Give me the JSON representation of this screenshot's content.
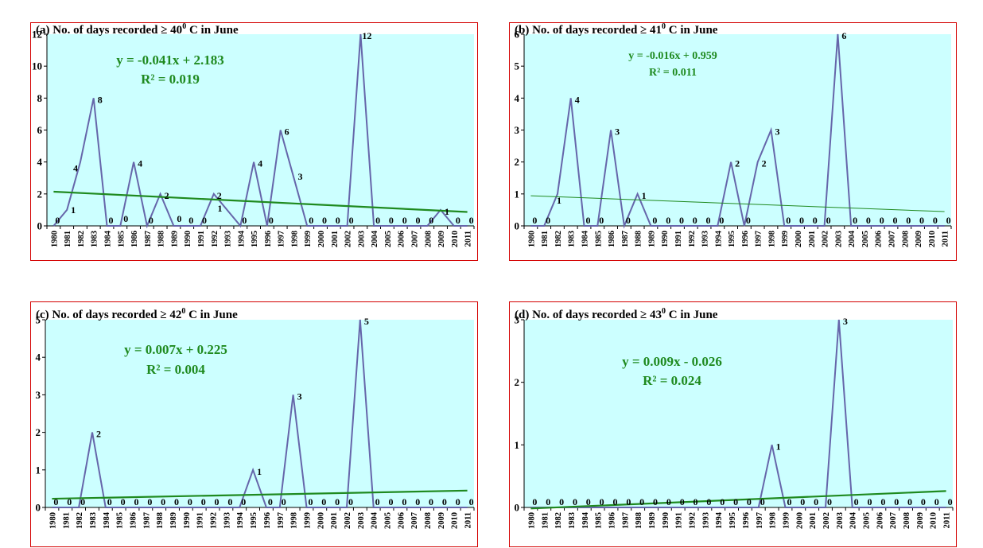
{
  "chart_data": [
    {
      "id": "a",
      "type": "line",
      "title": "(a) No. of days recorded ≥ 40⁰ C in June",
      "title_parts": [
        "(a) No. of days recorded ≥ 40",
        "0",
        " C in June"
      ],
      "x": [
        "1980",
        "1981",
        "1982",
        "1983",
        "1984",
        "1985",
        "1986",
        "1987",
        "1988",
        "1989",
        "1990",
        "1991",
        "1992",
        "1993",
        "1994",
        "1995",
        "1996",
        "1997",
        "1998",
        "1999",
        "2000",
        "2001",
        "2002",
        "2003",
        "2004",
        "2005",
        "2006",
        "2007",
        "2008",
        "2009",
        "2010",
        "2011"
      ],
      "values": [
        0,
        1,
        4,
        8,
        0,
        0,
        4,
        0,
        2,
        0,
        0,
        0,
        2,
        1,
        0,
        4,
        0,
        6,
        3,
        0,
        0,
        0,
        0,
        12,
        0,
        0,
        0,
        0,
        0,
        1,
        0,
        0
      ],
      "ylim": [
        0,
        12
      ],
      "yticks": [
        0,
        2,
        4,
        6,
        8,
        10,
        12
      ],
      "trendline": {
        "equation": "y = -0.041x + 2.183",
        "r2": "R² = 0.019",
        "slope": -0.041,
        "intercept": 2.183
      },
      "colors": {
        "plot_bg": "#ccffff",
        "line": "#6666aa",
        "trend": "#1f8a1f"
      }
    },
    {
      "id": "b",
      "type": "line",
      "title": "(b) No. of days recorded ≥ 41⁰ C in June",
      "title_parts": [
        "(b) No. of days recorded ≥ 41",
        "0",
        " C in June"
      ],
      "x": [
        "1980",
        "1981",
        "1982",
        "1983",
        "1984",
        "1985",
        "1986",
        "1987",
        "1988",
        "1989",
        "1990",
        "1991",
        "1992",
        "1993",
        "1994",
        "1995",
        "1996",
        "1997",
        "1998",
        "1999",
        "2000",
        "2001",
        "2002",
        "2003",
        "2004",
        "2005",
        "2006",
        "2007",
        "2008",
        "2009",
        "2010",
        "2011"
      ],
      "values": [
        0,
        0,
        1,
        4,
        0,
        0,
        3,
        0,
        1,
        0,
        0,
        0,
        0,
        0,
        0,
        2,
        0,
        2,
        3,
        0,
        0,
        0,
        0,
        6,
        0,
        0,
        0,
        0,
        0,
        0,
        0,
        0
      ],
      "ylim": [
        0,
        6
      ],
      "yticks": [
        0,
        1,
        2,
        3,
        4,
        5,
        6
      ],
      "trendline": {
        "equation": "y = -0.016x + 0.959",
        "r2": "R² = 0.011",
        "slope": -0.016,
        "intercept": 0.959
      },
      "colors": {
        "plot_bg": "#ccffff",
        "line": "#6666aa",
        "trend": "#1f8a1f"
      }
    },
    {
      "id": "c",
      "type": "line",
      "title": "(c) No. of days recorded ≥ 42⁰ C in June",
      "title_parts": [
        "(c) No. of days recorded ≥ 42",
        "0",
        " C in June"
      ],
      "x": [
        "1980",
        "1981",
        "1982",
        "1983",
        "1984",
        "1985",
        "1986",
        "1987",
        "1988",
        "1989",
        "1990",
        "1991",
        "1992",
        "1993",
        "1994",
        "1995",
        "1996",
        "1997",
        "1998",
        "1999",
        "2000",
        "2001",
        "2002",
        "2003",
        "2004",
        "2005",
        "2006",
        "2007",
        "2008",
        "2009",
        "2010",
        "2011"
      ],
      "values": [
        0,
        0,
        0,
        2,
        0,
        0,
        0,
        0,
        0,
        0,
        0,
        0,
        0,
        0,
        0,
        1,
        0,
        0,
        3,
        0,
        0,
        0,
        0,
        5,
        0,
        0,
        0,
        0,
        0,
        0,
        0,
        0
      ],
      "ylim": [
        0,
        5
      ],
      "yticks": [
        0,
        1,
        2,
        3,
        4,
        5
      ],
      "trendline": {
        "equation": "y = 0.007x + 0.225",
        "r2": "R² = 0.004",
        "slope": 0.007,
        "intercept": 0.225
      },
      "colors": {
        "plot_bg": "#ccffff",
        "line": "#6666aa",
        "trend": "#1f8a1f"
      }
    },
    {
      "id": "d",
      "type": "line",
      "title": "(d) No. of days recorded ≥ 43⁰ C in June",
      "title_parts": [
        "(d) No. of days recorded ≥ 43",
        "0",
        " C in June"
      ],
      "x": [
        "1980",
        "1981",
        "1982",
        "1983",
        "1984",
        "1985",
        "1986",
        "1987",
        "1988",
        "1989",
        "1990",
        "1991",
        "1992",
        "1993",
        "1994",
        "1995",
        "1996",
        "1997",
        "1998",
        "1999",
        "2000",
        "2001",
        "2002",
        "2003",
        "2004",
        "2005",
        "2006",
        "2007",
        "2008",
        "2009",
        "2010",
        "2011"
      ],
      "values": [
        0,
        0,
        0,
        0,
        0,
        0,
        0,
        0,
        0,
        0,
        0,
        0,
        0,
        0,
        0,
        0,
        0,
        0,
        1,
        0,
        0,
        0,
        0,
        3,
        0,
        0,
        0,
        0,
        0,
        0,
        0,
        0
      ],
      "ylim": [
        0,
        3
      ],
      "yticks": [
        0,
        1,
        2,
        3
      ],
      "trendline": {
        "equation": "y = 0.009x - 0.026",
        "r2": "R² = 0.024",
        "slope": 0.009,
        "intercept": -0.026
      },
      "colors": {
        "plot_bg": "#ccffff",
        "line": "#6666aa",
        "trend": "#1f8a1f"
      }
    }
  ]
}
